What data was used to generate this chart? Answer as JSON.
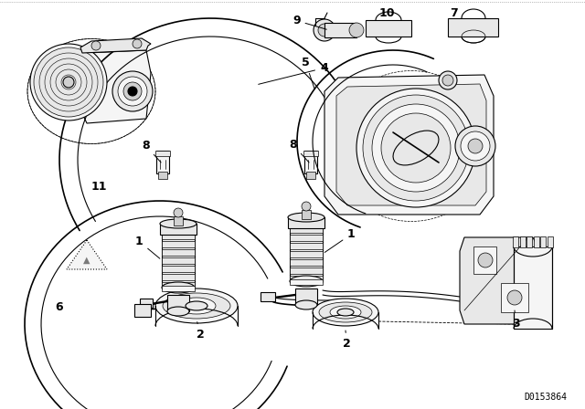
{
  "bg_color": "#ffffff",
  "fig_width": 6.4,
  "fig_height": 4.48,
  "dpi": 100,
  "part_number_text": "D0153864",
  "lw_main": 0.8,
  "lw_thin": 0.5,
  "lw_thick": 1.2,
  "black": "#000000",
  "gray": "#888888",
  "light_gray": "#cccccc",
  "fill_light": "#f5f5f5",
  "fill_med": "#e8e8e8",
  "fill_dark": "#d0d0d0"
}
